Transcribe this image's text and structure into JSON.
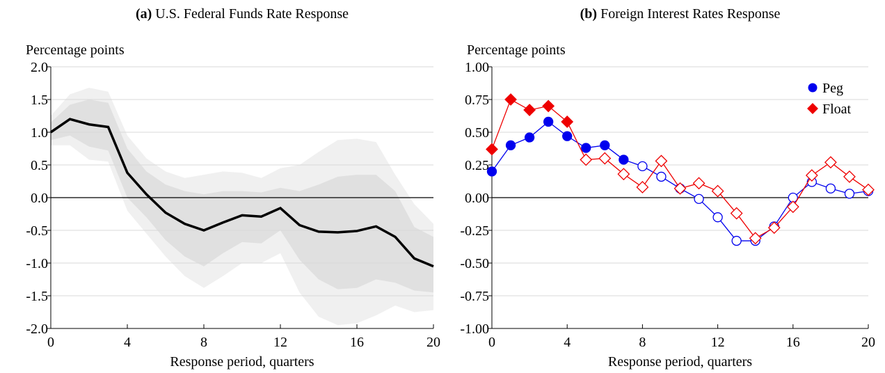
{
  "chart_data": [
    {
      "type": "line",
      "panel": "(a)",
      "title": "U.S. Federal Funds Rate Response",
      "ylabel": "Percentage points",
      "xlabel": "Response period, quarters",
      "x": [
        0,
        1,
        2,
        3,
        4,
        5,
        6,
        7,
        8,
        9,
        10,
        11,
        12,
        13,
        14,
        15,
        16,
        17,
        18,
        19,
        20
      ],
      "xlim": [
        0,
        20
      ],
      "xticks": [
        0,
        4,
        8,
        12,
        16,
        20
      ],
      "ylim": [
        -2,
        2
      ],
      "yticks": [
        {
          "value": 2,
          "label": "2.0"
        },
        {
          "value": 1.5,
          "label": "1.5"
        },
        {
          "value": 1,
          "label": "1.0"
        },
        {
          "value": 0.5,
          "label": "0.5"
        },
        {
          "value": 0,
          "label": "0.0"
        },
        {
          "value": -0.5,
          "label": "-0.5"
        },
        {
          "value": -1,
          "label": "-1.0"
        },
        {
          "value": -1.5,
          "label": "-1.5"
        },
        {
          "value": -2,
          "label": "-2.0"
        }
      ],
      "grid": true,
      "zero_line": true,
      "bands": [
        {
          "color": "#f0f0f0",
          "upper": [
            1.25,
            1.58,
            1.68,
            1.62,
            0.95,
            0.6,
            0.4,
            0.3,
            0.35,
            0.4,
            0.38,
            0.3,
            0.45,
            0.5,
            0.7,
            0.88,
            0.9,
            0.85,
            0.35,
            -0.1,
            -0.4
          ],
          "lower": [
            0.8,
            0.8,
            0.58,
            0.55,
            -0.2,
            -0.55,
            -0.9,
            -1.2,
            -1.38,
            -1.2,
            -1.0,
            -1.0,
            -0.85,
            -1.45,
            -1.82,
            -1.95,
            -1.92,
            -1.8,
            -1.65,
            -1.75,
            -1.72
          ]
        },
        {
          "color": "#e0e0e0",
          "upper": [
            1.15,
            1.42,
            1.5,
            1.45,
            0.75,
            0.4,
            0.2,
            0.1,
            0.05,
            0.1,
            0.1,
            0.08,
            0.15,
            0.1,
            0.2,
            0.32,
            0.35,
            0.35,
            0.1,
            -0.45,
            -0.6
          ],
          "lower": [
            0.88,
            0.95,
            0.78,
            0.72,
            0.0,
            -0.3,
            -0.65,
            -0.9,
            -1.05,
            -0.85,
            -0.68,
            -0.7,
            -0.5,
            -0.95,
            -1.25,
            -1.4,
            -1.38,
            -1.25,
            -1.3,
            -1.42,
            -1.45
          ]
        }
      ],
      "series": [
        {
          "color": "#000000",
          "values": [
            1.0,
            1.2,
            1.12,
            1.08,
            0.38,
            0.05,
            -0.23,
            -0.4,
            -0.5,
            -0.38,
            -0.27,
            -0.29,
            -0.16,
            -0.42,
            -0.52,
            -0.53,
            -0.51,
            -0.44,
            -0.6,
            -0.93,
            -1.05
          ]
        }
      ]
    },
    {
      "type": "line",
      "panel": "(b)",
      "title": "Foreign Interest Rates Response",
      "ylabel": "Percentage points",
      "xlabel": "Response period, quarters",
      "x": [
        0,
        1,
        2,
        3,
        4,
        5,
        6,
        7,
        8,
        9,
        10,
        11,
        12,
        13,
        14,
        15,
        16,
        17,
        18,
        19,
        20
      ],
      "xlim": [
        0,
        20
      ],
      "xticks": [
        0,
        4,
        8,
        12,
        16,
        20
      ],
      "ylim": [
        -1,
        1
      ],
      "yticks": [
        {
          "value": 1,
          "label": "1.00"
        },
        {
          "value": 0.75,
          "label": "0.75"
        },
        {
          "value": 0.5,
          "label": "0.50"
        },
        {
          "value": 0.25,
          "label": "0.25"
        },
        {
          "value": 0,
          "label": "0.00"
        },
        {
          "value": -0.25,
          "label": "-0.25"
        },
        {
          "value": -0.5,
          "label": "-0.50"
        },
        {
          "value": -0.75,
          "label": "-0.75"
        },
        {
          "value": -1,
          "label": "-1.00"
        }
      ],
      "grid": true,
      "zero_line": true,
      "legend": "upper right",
      "series": [
        {
          "name": "Peg",
          "color": "#0000ee",
          "marker": "circle",
          "values": [
            0.2,
            0.4,
            0.46,
            0.58,
            0.47,
            0.38,
            0.4,
            0.29,
            0.24,
            0.16,
            0.07,
            -0.01,
            -0.15,
            -0.33,
            -0.33,
            -0.22,
            0.0,
            0.12,
            0.07,
            0.03,
            0.05
          ],
          "filled": [
            true,
            true,
            true,
            true,
            true,
            true,
            true,
            true,
            false,
            false,
            false,
            false,
            false,
            false,
            false,
            false,
            false,
            false,
            false,
            false,
            false
          ]
        },
        {
          "name": "Float",
          "color": "#ee0000",
          "marker": "diamond",
          "values": [
            0.37,
            0.75,
            0.67,
            0.7,
            0.58,
            0.29,
            0.3,
            0.18,
            0.08,
            0.28,
            0.07,
            0.11,
            0.05,
            -0.12,
            -0.31,
            -0.23,
            -0.07,
            0.17,
            0.27,
            0.16,
            0.06
          ],
          "filled": [
            true,
            true,
            true,
            true,
            true,
            false,
            false,
            false,
            false,
            false,
            false,
            false,
            false,
            false,
            false,
            false,
            false,
            false,
            false,
            false,
            false
          ]
        }
      ]
    }
  ]
}
